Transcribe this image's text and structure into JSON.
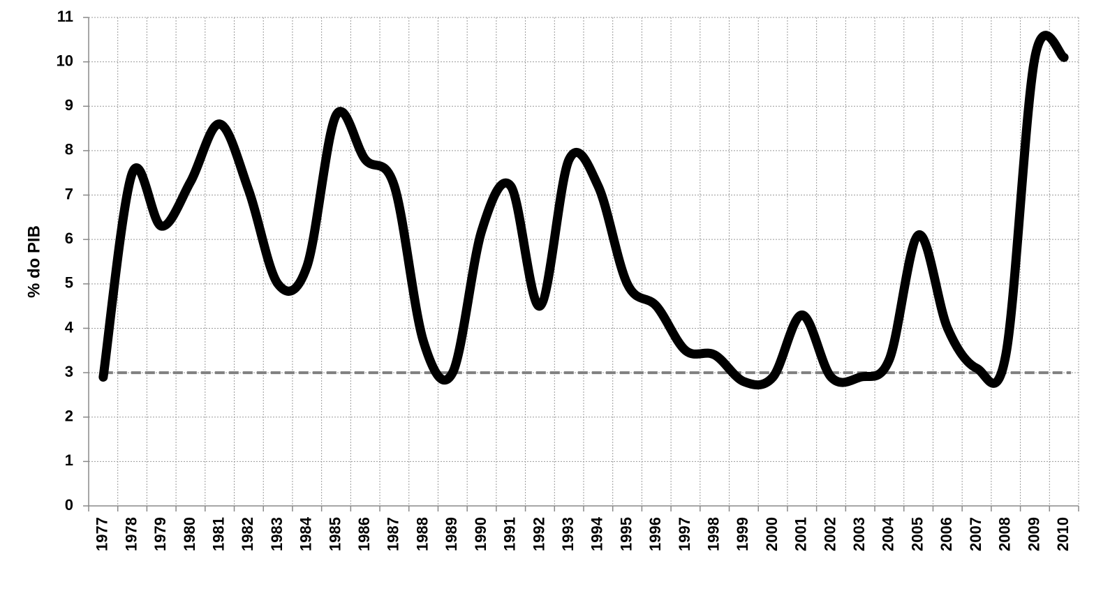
{
  "chart_data": {
    "type": "line",
    "y_label": "% do PIB",
    "categories": [
      "1977",
      "1978",
      "1979",
      "1980",
      "1981",
      "1982",
      "1983",
      "1984",
      "1985",
      "1986",
      "1987",
      "1988",
      "1989",
      "1990",
      "1991",
      "1992",
      "1993",
      "1994",
      "1995",
      "1996",
      "1997",
      "1998",
      "1999",
      "2000",
      "2001",
      "2002",
      "2003",
      "2004",
      "2005",
      "2006",
      "2007",
      "2008",
      "2009",
      "2010"
    ],
    "series": [
      {
        "color": "#000000",
        "values": [
          2.9,
          7.5,
          6.3,
          7.3,
          8.6,
          7.1,
          5.0,
          5.4,
          8.8,
          7.8,
          7.2,
          3.7,
          3.0,
          6.2,
          7.2,
          4.5,
          7.8,
          7.2,
          5.0,
          4.5,
          3.5,
          3.4,
          2.8,
          2.9,
          4.3,
          2.9,
          2.9,
          3.3,
          6.1,
          4.0,
          3.1,
          3.4,
          10.1,
          10.1
        ]
      }
    ],
    "reference_line": {
      "value": 3,
      "color": "#808080"
    },
    "ylim": [
      0,
      11
    ],
    "yticks": [
      0,
      1,
      2,
      3,
      4,
      5,
      6,
      7,
      8,
      9,
      10,
      11
    ],
    "grid": true
  }
}
